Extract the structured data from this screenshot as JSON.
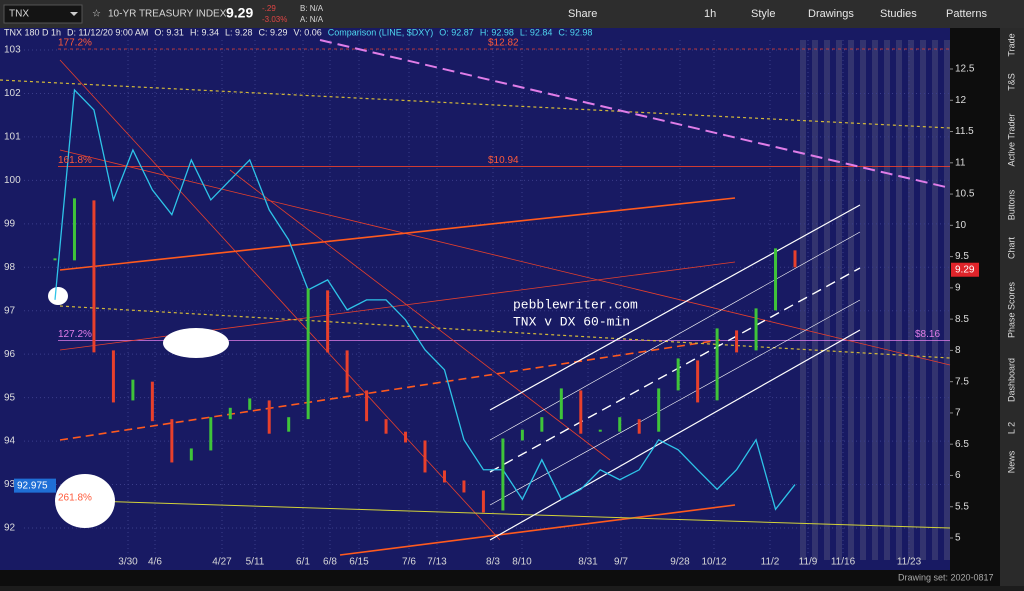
{
  "toolbar": {
    "symbol": "TNX",
    "description": "10-YR TREASURY INDEX",
    "last": "9.29",
    "change": "-.29",
    "change_pct": "-3.03%",
    "bid": "B: N/A",
    "ask": "A: N/A",
    "buttons": [
      "Share",
      "1h",
      "Style",
      "Drawings",
      "Studies",
      "Patterns"
    ]
  },
  "info": [
    "TNX 180 D 1h",
    "D: 11/12/20 9:00 AM",
    "O: 9.31",
    "H: 9.34",
    "L: 9.28",
    "C: 9.29",
    "V: 0.06",
    "Comparison (LINE, $DXY)",
    "O: 92.87",
    "H: 92.98",
    "L: 92.84",
    "C: 92.98"
  ],
  "sidebar": [
    "Trade",
    "T&S",
    "Active Trader",
    "Buttons",
    "Chart",
    "Phase Scores",
    "Dashboard",
    "L 2",
    "News"
  ],
  "status": "Drawing set: 2020-0817",
  "chart_data": {
    "type": "line",
    "annotations": [
      "pebblewriter.com",
      "TNX v DX 60-min"
    ],
    "x_labels": [
      "3/30",
      "4/6",
      "4/27",
      "5/11",
      "6/1",
      "6/8",
      "6/15",
      "7/6",
      "7/13",
      "8/3",
      "8/10",
      "8/31",
      "9/7",
      "9/28",
      "10/12",
      "11/2",
      "11/9",
      "11/16",
      "11/23"
    ],
    "levels": [
      {
        "value": 12.82,
        "label": "$12.82",
        "pct": "177.2%"
      },
      {
        "value": 10.94,
        "label": "$10.94",
        "pct": "161.8%"
      },
      {
        "value": 8.16,
        "label": "$8.16",
        "pct": "127.2%"
      }
    ],
    "extra_pct": "261.8%",
    "ylim": [
      91.4,
      103.4
    ],
    "yticks": [
      92,
      93,
      94,
      95,
      96,
      97,
      98,
      99,
      100,
      101,
      102,
      103
    ],
    "y2lim": [
      4.85,
      12.83
    ],
    "y2ticks": [
      5,
      5.5,
      6,
      6.5,
      7,
      7.5,
      8,
      8.5,
      9,
      9.5,
      10,
      10.5,
      11,
      11.5,
      12,
      12.5
    ],
    "grid": true,
    "price_tags": [
      {
        "value": 92.975,
        "color": "#1f6fd6"
      },
      {
        "value": 9.29,
        "color": "#e0242a",
        "axis": "y2"
      }
    ],
    "series": [
      {
        "name": "$DXY",
        "color": "#2ec4e8",
        "values": [
          97.25,
          102.08,
          101.62,
          99.55,
          100.7,
          99.78,
          99.21,
          100.47,
          99.55,
          100.01,
          100.47,
          99.32,
          98.63,
          97.48,
          97.71,
          97.02,
          97.25,
          97.25,
          96.79,
          96.1,
          95.64,
          94.03,
          93.34,
          93.34,
          92.66,
          93.57,
          92.66,
          92.89,
          93.34,
          93.11,
          93.34,
          94.03,
          93.8,
          93.34,
          92.89,
          93.34,
          94.03,
          92.43,
          93.0
        ]
      },
      {
        "name": "TNX",
        "color": "#3fc43a",
        "axis": "y2",
        "values": [
          9.44,
          10.4,
          8.0,
          7.2,
          7.5,
          6.9,
          6.24,
          6.4,
          6.9,
          7.05,
          7.2,
          6.7,
          6.9,
          8.96,
          8.0,
          7.36,
          6.9,
          6.7,
          6.56,
          6.08,
          5.92,
          5.76,
          5.44,
          6.56,
          6.7,
          6.9,
          7.36,
          6.7,
          6.7,
          6.9,
          6.7,
          7.36,
          7.84,
          7.2,
          8.32,
          8.0,
          8.64,
          9.6,
          9.36
        ]
      }
    ]
  }
}
